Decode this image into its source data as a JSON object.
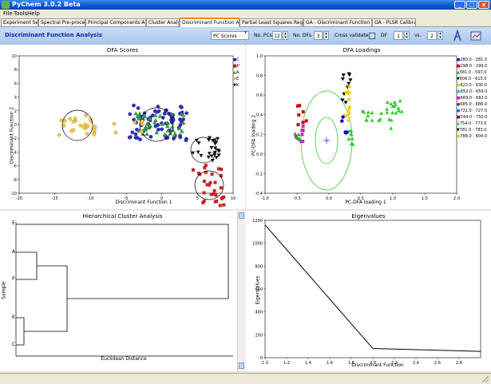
{
  "window": {
    "title": "PyChem 3.0.2 Beta",
    "min": "_",
    "max": "□",
    "close": "x"
  },
  "menu": {
    "items": [
      "File",
      "Tools",
      "Help"
    ]
  },
  "tabs": [
    "Experiment Setup",
    "Spectral Pre-processing",
    "Principal Components Analysis",
    "Cluster Analysis",
    "Discriminant Function Analysis",
    "Partial Least Squares Regression",
    "GA - Discriminant Function Analysis",
    "GA - PLSR Calibration"
  ],
  "active_tab_index": 4,
  "toolbar": {
    "title": "Discriminant Function Analysis",
    "source_select": "PC Scores",
    "num_pcs_label": "No. PCs",
    "num_pcs_value": "12",
    "num_dfs_label": "No. DFs",
    "num_dfs_value": "3",
    "cross_validate_label": "Cross validate?",
    "df_label": "DF",
    "df_value": "1",
    "vs_label": "vs.",
    "vs_value": "2"
  },
  "scores_plot": {
    "title": "DFA Scores",
    "xlabel": "Discriminant Function 1",
    "ylabel": "Discriminant Function 2",
    "xticks": [
      "-20",
      "-15",
      "-10",
      "-5",
      "0",
      "5",
      "10"
    ],
    "yticks": [
      "10",
      "8",
      "6",
      "4",
      "2",
      "0",
      "-2",
      "-4",
      "-6",
      "-8",
      "-10"
    ],
    "legend": [
      "C",
      "P",
      "A",
      "E",
      "K"
    ]
  },
  "loadings_plot": {
    "title": "DFA Loadings",
    "xlabel": "PC-DFA loading 1",
    "ylabel": "PC-DFA loading 2",
    "xticks": [
      "-1.0",
      "-0.5",
      "0.0",
      "0.5",
      "1.0",
      "1.5",
      "2.0"
    ],
    "yticks": [
      "1.0",
      "0.8",
      "0.6",
      "0.4",
      "0.2",
      "0.0",
      "-0.2",
      "-0.4"
    ],
    "legend": [
      "280.0 - 281.0",
      "298.0 - 299.0",
      "581.0 - 597.0",
      "606.0 - 615.0",
      "623.0 - 630.0",
      "652.0 - 659.0",
      "669.0 - 682.0",
      "685.0 - 688.0",
      "721.0 - 727.0",
      "744.0 - 750.0",
      "754.0 - 773.0",
      "781.0 - 783.0",
      "788.0 - 804.0"
    ]
  },
  "cluster_plot": {
    "title": "Hierarchical Cluster Analysis",
    "xlabel": "Euclidean Distance",
    "ylabel": "Sample",
    "leaves": [
      "E",
      "A",
      "P",
      "K",
      "C"
    ]
  },
  "eigen_plot": {
    "title": "Eigenvalues",
    "xlabel": "Discriminant Function",
    "ylabel": "Eigenvalues",
    "xticks": [
      "1.0",
      "1.2",
      "1.4",
      "1.6",
      "1.8",
      "2.0",
      "2.2",
      "2.4",
      "2.6",
      "2.8"
    ],
    "yticks": [
      "1200",
      "1000",
      "800",
      "600",
      "400",
      "200",
      "0"
    ]
  },
  "chart_data": [
    {
      "type": "line",
      "title": "Eigenvalues",
      "xlabel": "Discriminant Function",
      "ylabel": "Eigenvalues",
      "x": [
        1,
        2,
        3
      ],
      "series": [
        {
          "values": [
            1160,
            80,
            55
          ]
        }
      ],
      "xlim": [
        1,
        3
      ],
      "ylim": [
        0,
        1200
      ]
    }
  ]
}
